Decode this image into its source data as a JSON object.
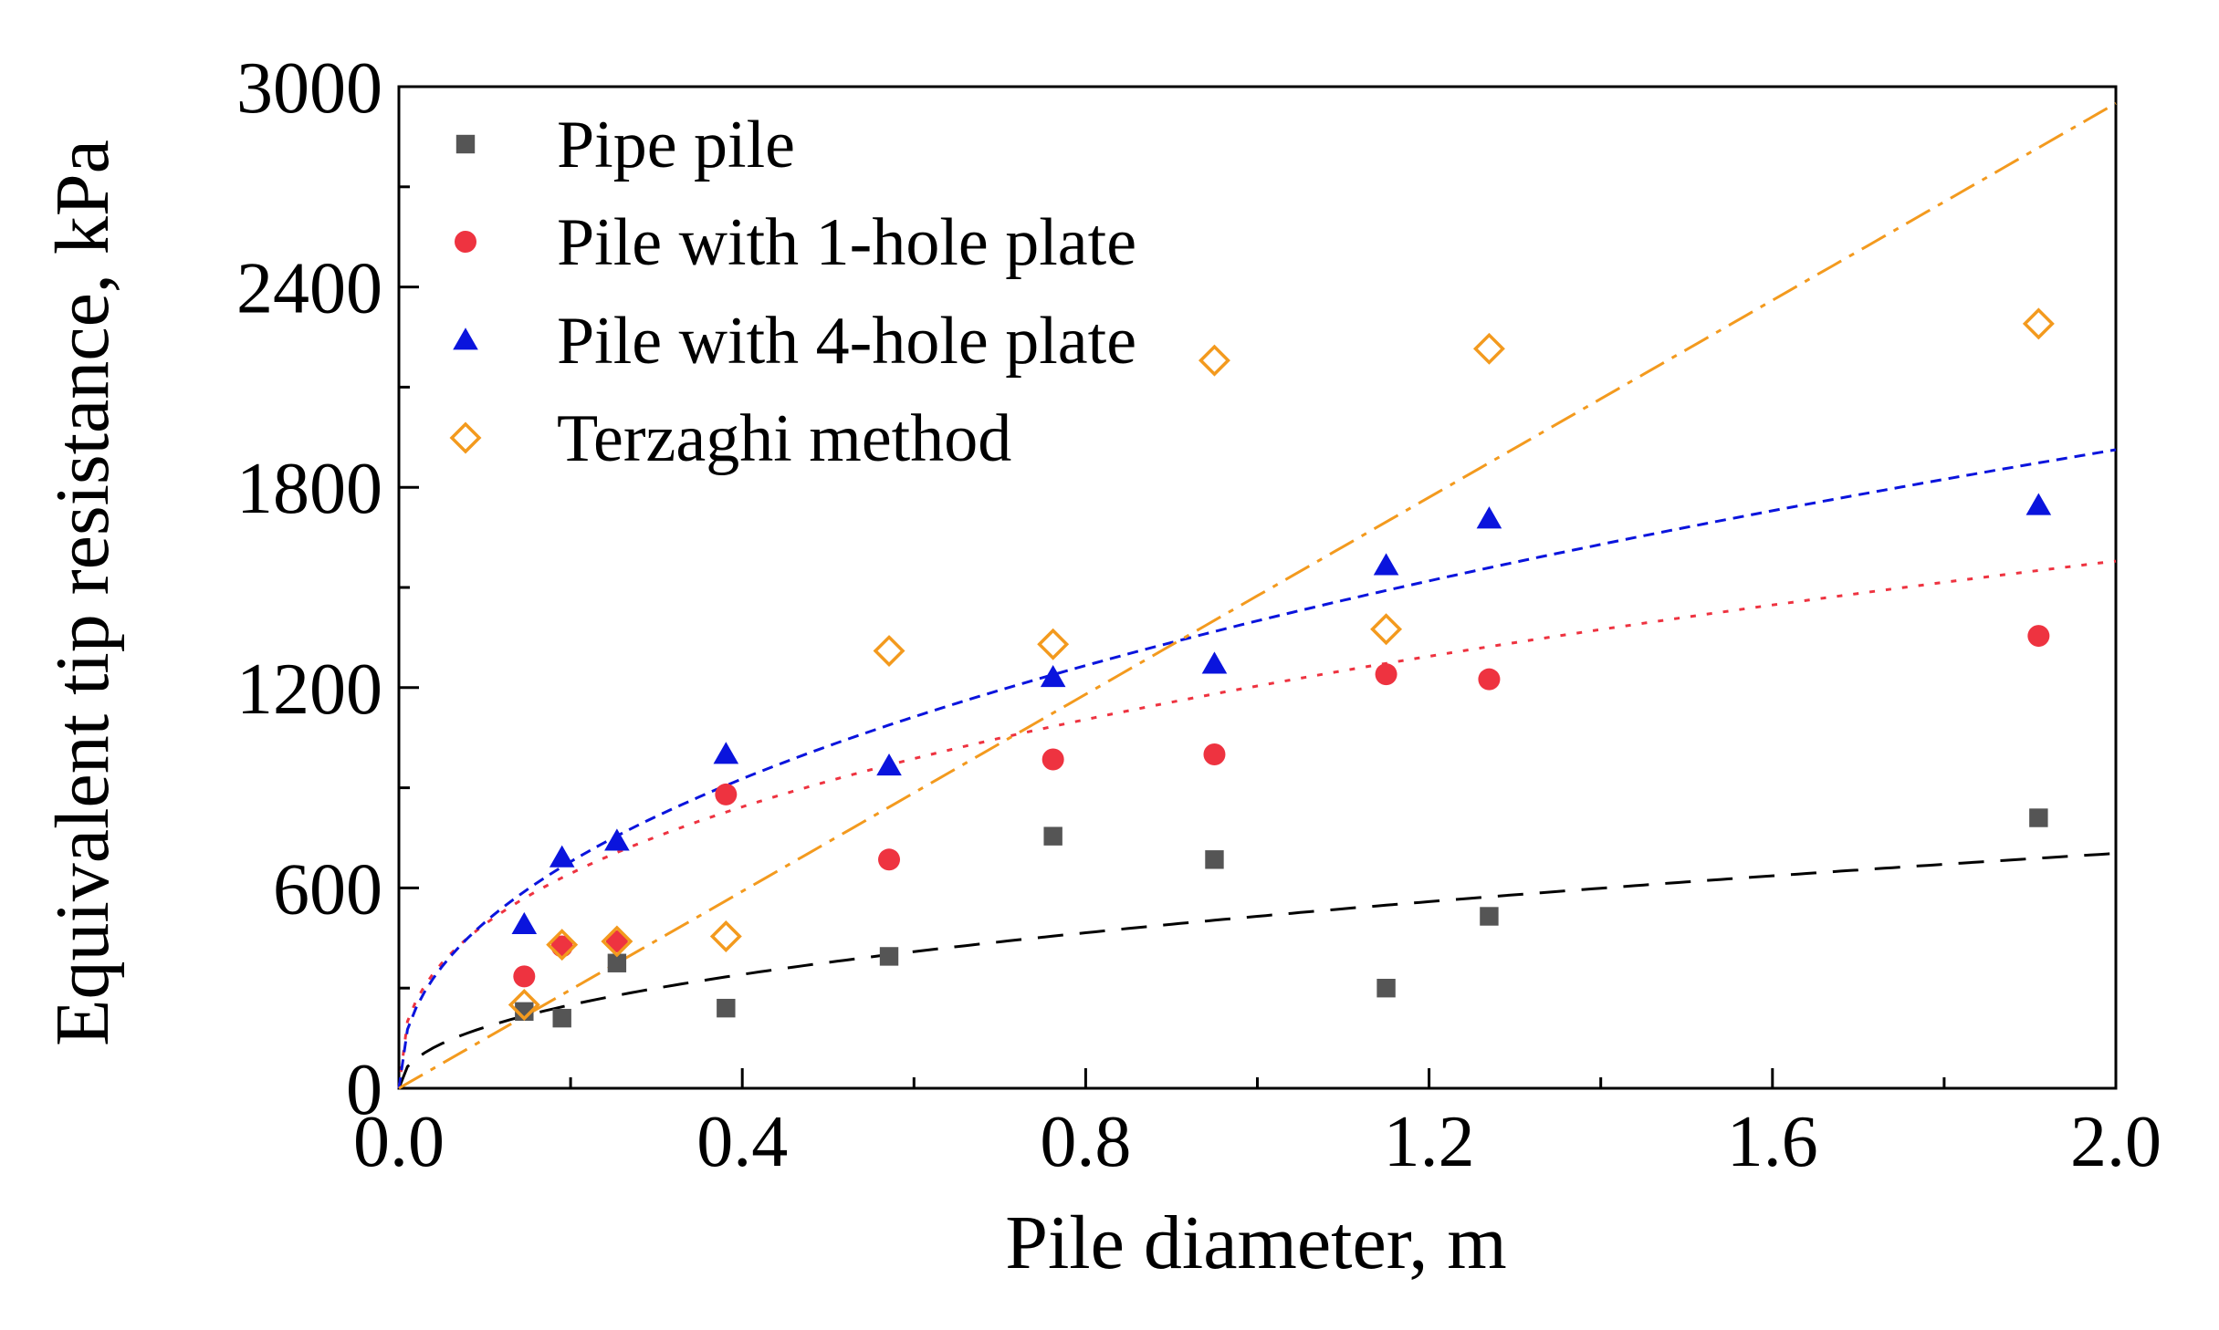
{
  "chart_data": {
    "type": "scatter",
    "xlabel": "Pile diameter, m",
    "ylabel": "Equivalent tip resistance, kPa",
    "xlim": [
      0.0,
      2.0
    ],
    "ylim": [
      0,
      3000
    ],
    "x_ticks": [
      "0.0",
      "0.4",
      "0.8",
      "1.2",
      "1.6",
      "2.0"
    ],
    "y_ticks": [
      "0",
      "600",
      "1200",
      "1800",
      "2400",
      "3000"
    ],
    "legend_position": "top-left",
    "series": [
      {
        "name": "Pipe pile",
        "marker": "square",
        "color": "#555555",
        "x": [
          0.146,
          0.19,
          0.254,
          0.381,
          0.571,
          0.762,
          0.95,
          1.15,
          1.27,
          1.91
        ],
        "y": [
          230,
          210,
          375,
          240,
          395,
          755,
          685,
          300,
          515,
          810
        ]
      },
      {
        "name": "Pile with 1-hole plate",
        "marker": "circle",
        "color": "#ee3340",
        "x": [
          0.146,
          0.19,
          0.254,
          0.381,
          0.571,
          0.762,
          0.95,
          1.15,
          1.27,
          1.91
        ],
        "y": [
          335,
          425,
          440,
          880,
          685,
          985,
          1000,
          1240,
          1225,
          1355
        ]
      },
      {
        "name": "Pile with 4-hole plate",
        "marker": "triangle",
        "color": "#0a14dd",
        "x": [
          0.146,
          0.19,
          0.254,
          0.381,
          0.571,
          0.762,
          0.95,
          1.15,
          1.27,
          1.91
        ],
        "y": [
          490,
          690,
          740,
          1000,
          965,
          1230,
          1270,
          1565,
          1705,
          1745
        ]
      },
      {
        "name": "Terzaghi method",
        "marker": "diamond-open",
        "color": "#f39a1e",
        "x": [
          0.146,
          0.19,
          0.254,
          0.381,
          0.571,
          0.762,
          0.95,
          1.15,
          1.27,
          1.91
        ],
        "y": [
          250,
          430,
          440,
          455,
          1310,
          1330,
          2180,
          1375,
          2215,
          2290
        ]
      }
    ],
    "fits": [
      {
        "series": "Pipe pile",
        "form": "power",
        "a": 515,
        "b": 0.45,
        "color": "#000000",
        "dash": "28 18"
      },
      {
        "series": "Pile with 1-hole plate",
        "form": "power",
        "a": 1205,
        "b": 0.39,
        "color": "#ee3340",
        "dash": "6 12"
      },
      {
        "series": "Pile with 4-hole plate",
        "form": "power",
        "a": 1400,
        "b": 0.45,
        "color": "#0a14dd",
        "dash": "12 8"
      },
      {
        "series": "Terzaghi method",
        "form": "linear",
        "a": 1475,
        "b": 1,
        "color": "#f39a1e",
        "dash": "30 10 6 10"
      }
    ]
  }
}
